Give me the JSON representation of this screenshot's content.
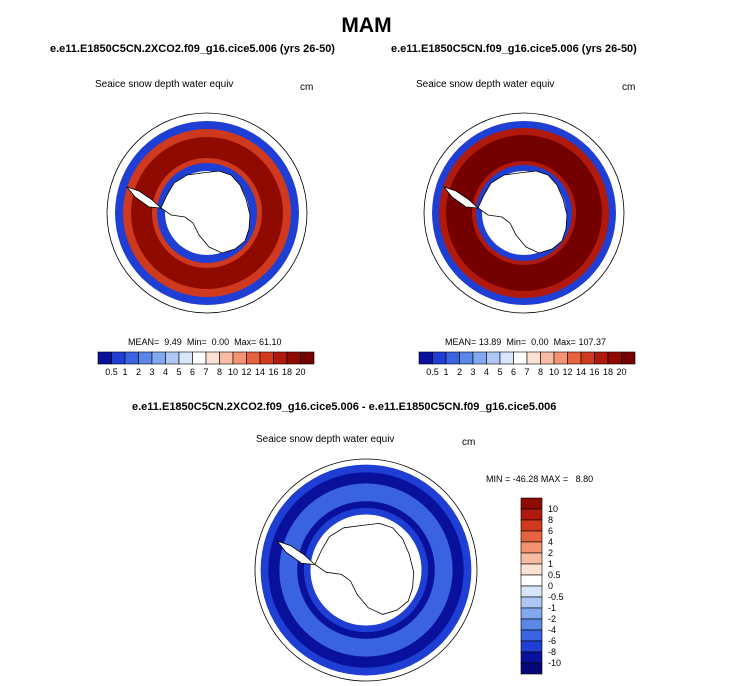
{
  "title": "MAM",
  "chart_data": [
    {
      "type": "heatmap",
      "projection": "south polar stereographic",
      "case": "e.e11.E1850C5CN.2XCO2.f09_g16.cice5.006 (yrs 26-50)",
      "variable": "Seaice snow depth water equiv",
      "units": "cm",
      "stats": {
        "mean_label": "MEAN=",
        "mean": "9.49",
        "min_label": "Min=",
        "min": "0.00",
        "max_label": "Max=",
        "max": "61.10"
      },
      "colorbar": {
        "orientation": "horizontal",
        "levels": [
          "0.5",
          "1",
          "2",
          "3",
          "4",
          "5",
          "6",
          "7",
          "8",
          "10",
          "12",
          "14",
          "16",
          "18",
          "20"
        ]
      }
    },
    {
      "type": "heatmap",
      "projection": "south polar stereographic",
      "case": "e.e11.E1850C5CN.f09_g16.cice5.006 (yrs 26-50)",
      "variable": "Seaice snow depth water equiv",
      "units": "cm",
      "stats": {
        "mean_label": "MEAN=",
        "mean": "13.89",
        "min_label": "Min=",
        "min": "0.00",
        "max_label": "Max=",
        "max": "107.37"
      },
      "colorbar": {
        "orientation": "horizontal",
        "levels": [
          "0.5",
          "1",
          "2",
          "3",
          "4",
          "5",
          "6",
          "7",
          "8",
          "10",
          "12",
          "14",
          "16",
          "18",
          "20"
        ]
      }
    },
    {
      "type": "heatmap",
      "projection": "south polar stereographic",
      "case": "e.e11.E1850C5CN.2XCO2.f09_g16.cice5.006 - e.e11.E1850C5CN.f09_g16.cice5.006",
      "variable": "Seaice snow depth water equiv",
      "units": "cm",
      "stats": {
        "min_label": "MIN =",
        "min": "-46.28",
        "max_label": "MAX =",
        "max": "8.80"
      },
      "colorbar": {
        "orientation": "vertical",
        "levels": [
          "10",
          "8",
          "6",
          "4",
          "2",
          "1",
          "0.5",
          "0",
          "-0.5",
          "-1",
          "-2",
          "-4",
          "-6",
          "-8",
          "-10"
        ]
      }
    }
  ],
  "palettes": {
    "sequential": [
      "#08109c",
      "#1f3ed4",
      "#3963e0",
      "#5a87e8",
      "#82a9f0",
      "#adc8f5",
      "#d7e6fa",
      "#ffffff",
      "#fde2d4",
      "#f9bca2",
      "#f39372",
      "#e7623f",
      "#cf3a1e",
      "#b01a0c",
      "#8f0a00",
      "#750000"
    ],
    "diverging": [
      "#8f0a00",
      "#b01a0c",
      "#cf3a1e",
      "#e7623f",
      "#f39372",
      "#f9bca2",
      "#fde2d4",
      "#ffffff",
      "#d7e6fa",
      "#adc8f5",
      "#82a9f0",
      "#5a87e8",
      "#3963e0",
      "#1f3ed4",
      "#08109c",
      "#06087a"
    ]
  }
}
